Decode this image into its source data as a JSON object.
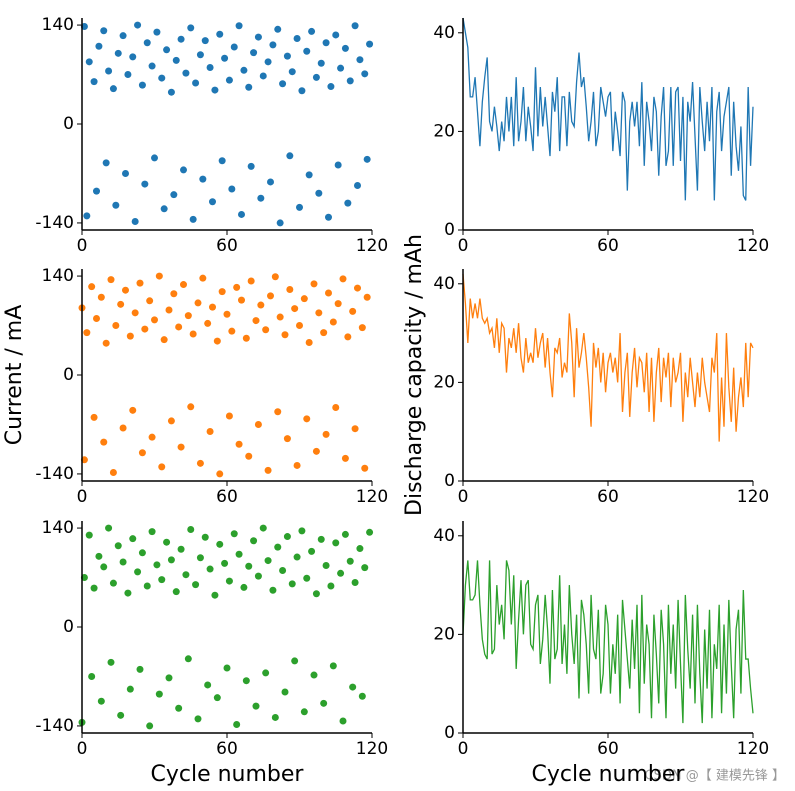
{
  "chart_data": [
    {
      "type": "scatter",
      "color": "#1f77b4",
      "xlim": [
        0,
        120
      ],
      "ylim": [
        -150,
        150
      ],
      "xticks": [
        0,
        60,
        120
      ],
      "yticks": [
        -140,
        0,
        140
      ],
      "x": [
        1,
        3,
        5,
        7,
        9,
        11,
        13,
        15,
        17,
        19,
        21,
        23,
        25,
        27,
        29,
        31,
        33,
        35,
        37,
        39,
        41,
        43,
        45,
        47,
        49,
        51,
        53,
        55,
        57,
        59,
        61,
        63,
        65,
        67,
        69,
        71,
        73,
        75,
        77,
        79,
        81,
        83,
        85,
        87,
        89,
        91,
        93,
        95,
        97,
        99,
        101,
        103,
        105,
        107,
        109,
        111,
        113,
        115,
        117,
        119,
        2,
        6,
        10,
        14,
        18,
        22,
        26,
        30,
        34,
        38,
        42,
        46,
        50,
        54,
        58,
        62,
        66,
        70,
        74,
        78,
        82,
        86,
        90,
        94,
        98,
        102,
        106,
        110,
        114,
        118
      ],
      "y": [
        138,
        88,
        60,
        110,
        132,
        75,
        50,
        100,
        125,
        70,
        95,
        140,
        55,
        115,
        82,
        130,
        65,
        105,
        45,
        90,
        120,
        72,
        136,
        58,
        98,
        118,
        80,
        48,
        127,
        93,
        62,
        109,
        139,
        76,
        52,
        101,
        123,
        68,
        88,
        112,
        134,
        57,
        96,
        74,
        121,
        47,
        103,
        131,
        66,
        86,
        115,
        53,
        126,
        79,
        107,
        61,
        139,
        91,
        71,
        113,
        -130,
        -95,
        -55,
        -115,
        -70,
        -138,
        -85,
        -48,
        -120,
        -100,
        -65,
        -135,
        -78,
        -110,
        -52,
        -92,
        -128,
        -60,
        -105,
        -82,
        -140,
        -45,
        -118,
        -72,
        -98,
        -132,
        -58,
        -112,
        -87,
        -50
      ]
    },
    {
      "type": "scatter",
      "color": "#ff7f0e",
      "xlim": [
        0,
        120
      ],
      "ylim": [
        -150,
        150
      ],
      "xticks": [
        0,
        60,
        120
      ],
      "yticks": [
        -140,
        0,
        140
      ],
      "ylabel": "Current / mA",
      "x": [
        0,
        2,
        4,
        6,
        8,
        10,
        12,
        14,
        16,
        18,
        20,
        22,
        24,
        26,
        28,
        30,
        32,
        34,
        36,
        38,
        40,
        42,
        44,
        46,
        48,
        50,
        52,
        54,
        56,
        58,
        60,
        62,
        64,
        66,
        68,
        70,
        72,
        74,
        76,
        78,
        80,
        82,
        84,
        86,
        88,
        90,
        92,
        94,
        96,
        98,
        100,
        102,
        104,
        106,
        108,
        110,
        112,
        114,
        116,
        118,
        1,
        5,
        9,
        13,
        17,
        21,
        25,
        29,
        33,
        37,
        41,
        45,
        49,
        53,
        57,
        61,
        65,
        69,
        73,
        77,
        81,
        85,
        89,
        93,
        97,
        101,
        105,
        109,
        113,
        117
      ],
      "y": [
        95,
        60,
        125,
        80,
        110,
        45,
        135,
        70,
        100,
        120,
        55,
        88,
        130,
        65,
        105,
        78,
        140,
        50,
        92,
        115,
        68,
        128,
        84,
        58,
        102,
        137,
        73,
        96,
        48,
        118,
        86,
        62,
        124,
        106,
        52,
        133,
        77,
        99,
        64,
        112,
        139,
        82,
        57,
        121,
        94,
        70,
        108,
        46,
        129,
        88,
        60,
        116,
        75,
        101,
        136,
        54,
        90,
        123,
        67,
        110,
        -120,
        -60,
        -95,
        -138,
        -75,
        -50,
        -110,
        -88,
        -130,
        -65,
        -102,
        -45,
        -125,
        -80,
        -140,
        -58,
        -98,
        -115,
        -70,
        -135,
        -52,
        -90,
        -128,
        -62,
        -108,
        -84,
        -46,
        -118,
        -76,
        -132
      ]
    },
    {
      "type": "scatter",
      "color": "#2ca02c",
      "xlim": [
        0,
        120
      ],
      "ylim": [
        -150,
        150
      ],
      "xticks": [
        0,
        60,
        120
      ],
      "yticks": [
        -140,
        0,
        140
      ],
      "xlabel": "Cycle number",
      "x": [
        1,
        3,
        5,
        7,
        9,
        11,
        13,
        15,
        17,
        19,
        21,
        23,
        25,
        27,
        29,
        31,
        33,
        35,
        37,
        39,
        41,
        43,
        45,
        47,
        49,
        51,
        53,
        55,
        57,
        59,
        61,
        63,
        65,
        67,
        69,
        71,
        73,
        75,
        77,
        79,
        81,
        83,
        85,
        87,
        89,
        91,
        93,
        95,
        97,
        99,
        101,
        103,
        105,
        107,
        109,
        111,
        113,
        115,
        117,
        119,
        0,
        4,
        8,
        12,
        16,
        20,
        24,
        28,
        32,
        36,
        40,
        44,
        48,
        52,
        56,
        60,
        64,
        68,
        72,
        76,
        80,
        84,
        88,
        92,
        96,
        100,
        104,
        108,
        112,
        116
      ],
      "y": [
        70,
        130,
        55,
        100,
        85,
        140,
        62,
        115,
        92,
        48,
        125,
        78,
        105,
        58,
        135,
        88,
        67,
        120,
        95,
        50,
        110,
        74,
        138,
        60,
        98,
        127,
        82,
        45,
        117,
        90,
        65,
        132,
        103,
        56,
        86,
        122,
        72,
        140,
        94,
        52,
        113,
        80,
        128,
        61,
        99,
        136,
        69,
        107,
        47,
        124,
        87,
        58,
        119,
        76,
        131,
        93,
        63,
        111,
        84,
        134,
        -135,
        -70,
        -105,
        -50,
        -125,
        -88,
        -60,
        -140,
        -95,
        -72,
        -115,
        -45,
        -130,
        -82,
        -100,
        -58,
        -138,
        -76,
        -112,
        -65,
        -128,
        -92,
        -48,
        -120,
        -68,
        -108,
        -55,
        -133,
        -85,
        -98
      ]
    },
    {
      "type": "line",
      "color": "#1f77b4",
      "xlim": [
        0,
        120
      ],
      "ylim": [
        0,
        43
      ],
      "xticks": [
        0,
        60,
        120
      ],
      "yticks": [
        0,
        20,
        40
      ],
      "x": [
        0,
        1,
        2,
        3,
        4,
        5,
        6,
        7,
        8,
        9,
        10,
        11,
        12,
        13,
        14,
        15,
        16,
        17,
        18,
        19,
        20,
        21,
        22,
        23,
        24,
        25,
        26,
        27,
        28,
        29,
        30,
        31,
        32,
        33,
        34,
        35,
        36,
        37,
        38,
        39,
        40,
        41,
        42,
        43,
        44,
        45,
        46,
        47,
        48,
        49,
        50,
        51,
        52,
        53,
        54,
        55,
        56,
        57,
        58,
        59,
        60,
        61,
        62,
        63,
        64,
        65,
        66,
        67,
        68,
        69,
        70,
        71,
        72,
        73,
        74,
        75,
        76,
        77,
        78,
        79,
        80,
        81,
        82,
        83,
        84,
        85,
        86,
        87,
        88,
        89,
        90,
        91,
        92,
        93,
        94,
        95,
        96,
        97,
        98,
        99,
        100,
        101,
        102,
        103,
        104,
        105,
        106,
        107,
        108,
        109,
        110,
        111,
        112,
        113,
        114,
        115,
        116,
        117,
        118,
        119,
        120
      ],
      "values": [
        43,
        40,
        37,
        27,
        27,
        31,
        24,
        17,
        26,
        31,
        35,
        22,
        20,
        25,
        21,
        16,
        22,
        18,
        27,
        20,
        27,
        17,
        31,
        18,
        22,
        29,
        18,
        25,
        21,
        16,
        33,
        19,
        29,
        21,
        27,
        21,
        15,
        28,
        24,
        31,
        16,
        27,
        27,
        17,
        28,
        22,
        21,
        30,
        36,
        29,
        31,
        25,
        18,
        22,
        28,
        17,
        20,
        29,
        26,
        23,
        27,
        28,
        16,
        24,
        20,
        15,
        28,
        26,
        8,
        22,
        26,
        21,
        26,
        17,
        30,
        13,
        26,
        22,
        16,
        27,
        24,
        11,
        23,
        29,
        13,
        16,
        29,
        13,
        28,
        29,
        14,
        27,
        6,
        26,
        22,
        30,
        19,
        8,
        29,
        22,
        16,
        26,
        18,
        29,
        6,
        24,
        28,
        16,
        23,
        26,
        29,
        11,
        26,
        17,
        12,
        21,
        7,
        6,
        29,
        13,
        25
      ]
    },
    {
      "type": "line",
      "color": "#ff7f0e",
      "xlim": [
        0,
        120
      ],
      "ylim": [
        0,
        43
      ],
      "xticks": [
        0,
        60,
        120
      ],
      "yticks": [
        0,
        20,
        40
      ],
      "ylabel": "Discharge capacity / mAh",
      "x": [
        0,
        1,
        2,
        3,
        4,
        5,
        6,
        7,
        8,
        9,
        10,
        11,
        12,
        13,
        14,
        15,
        16,
        17,
        18,
        19,
        20,
        21,
        22,
        23,
        24,
        25,
        26,
        27,
        28,
        29,
        30,
        31,
        32,
        33,
        34,
        35,
        36,
        37,
        38,
        39,
        40,
        41,
        42,
        43,
        44,
        45,
        46,
        47,
        48,
        49,
        50,
        51,
        52,
        53,
        54,
        55,
        56,
        57,
        58,
        59,
        60,
        61,
        62,
        63,
        64,
        65,
        66,
        67,
        68,
        69,
        70,
        71,
        72,
        73,
        74,
        75,
        76,
        77,
        78,
        79,
        80,
        81,
        82,
        83,
        84,
        85,
        86,
        87,
        88,
        89,
        90,
        91,
        92,
        93,
        94,
        95,
        96,
        97,
        98,
        99,
        100,
        101,
        102,
        103,
        104,
        105,
        106,
        107,
        108,
        109,
        110,
        111,
        112,
        113,
        114,
        115,
        116,
        117,
        118,
        119,
        120
      ],
      "values": [
        42,
        36,
        28,
        37,
        33,
        36,
        33,
        37,
        33,
        32,
        33,
        30,
        31,
        27,
        33,
        26,
        32,
        31,
        22,
        29,
        27,
        31,
        26,
        32,
        25,
        22,
        29,
        24,
        26,
        24,
        31,
        25,
        28,
        30,
        23,
        29,
        22,
        17,
        27,
        26,
        29,
        21,
        24,
        22,
        34,
        28,
        17,
        31,
        23,
        26,
        30,
        25,
        19,
        11,
        28,
        23,
        27,
        20,
        26,
        18,
        24,
        26,
        22,
        25,
        20,
        30,
        14,
        22,
        26,
        13,
        22,
        27,
        19,
        25,
        24,
        18,
        26,
        14,
        25,
        12,
        22,
        27,
        16,
        25,
        21,
        26,
        15,
        25,
        20,
        22,
        26,
        12,
        22,
        17,
        25,
        20,
        15,
        22,
        17,
        25,
        20,
        17,
        14,
        25,
        22,
        30,
        8,
        21,
        11,
        30,
        19,
        12,
        23,
        10,
        17,
        21,
        15,
        28,
        17,
        28,
        27
      ]
    },
    {
      "type": "line",
      "color": "#2ca02c",
      "xlim": [
        0,
        120
      ],
      "ylim": [
        0,
        43
      ],
      "xticks": [
        0,
        60,
        120
      ],
      "yticks": [
        0,
        20,
        40
      ],
      "xlabel": "Cycle number",
      "x": [
        0,
        1,
        2,
        3,
        4,
        5,
        6,
        7,
        8,
        9,
        10,
        11,
        12,
        13,
        14,
        15,
        16,
        17,
        18,
        19,
        20,
        21,
        22,
        23,
        24,
        25,
        26,
        27,
        28,
        29,
        30,
        31,
        32,
        33,
        34,
        35,
        36,
        37,
        38,
        39,
        40,
        41,
        42,
        43,
        44,
        45,
        46,
        47,
        48,
        49,
        50,
        51,
        52,
        53,
        54,
        55,
        56,
        57,
        58,
        59,
        60,
        61,
        62,
        63,
        64,
        65,
        66,
        67,
        68,
        69,
        70,
        71,
        72,
        73,
        74,
        75,
        76,
        77,
        78,
        79,
        80,
        81,
        82,
        83,
        84,
        85,
        86,
        87,
        88,
        89,
        90,
        91,
        92,
        93,
        94,
        95,
        96,
        97,
        98,
        99,
        100,
        101,
        102,
        103,
        104,
        105,
        106,
        107,
        108,
        109,
        110,
        111,
        112,
        113,
        114,
        115,
        116,
        117,
        118,
        119,
        120
      ],
      "values": [
        20,
        30,
        35,
        27,
        27,
        28,
        35,
        26,
        19,
        16,
        15,
        35,
        16,
        17,
        30,
        22,
        26,
        19,
        35,
        33,
        22,
        32,
        13,
        23,
        31,
        20,
        30,
        31,
        18,
        17,
        26,
        28,
        14,
        19,
        28,
        21,
        10,
        29,
        15,
        17,
        32,
        14,
        22,
        12,
        30,
        20,
        14,
        24,
        7,
        27,
        24,
        18,
        8,
        28,
        17,
        15,
        25,
        8,
        12,
        26,
        22,
        8,
        18,
        12,
        24,
        6,
        27,
        21,
        15,
        9,
        23,
        13,
        26,
        4,
        28,
        10,
        22,
        18,
        3,
        24,
        16,
        6,
        25,
        18,
        3,
        26,
        12,
        22,
        9,
        27,
        14,
        2,
        28,
        17,
        9,
        24,
        6,
        26,
        12,
        2,
        21,
        9,
        25,
        3,
        18,
        13,
        26,
        4,
        22,
        8,
        27,
        14,
        3,
        21,
        25,
        8,
        29,
        15,
        15,
        9,
        4
      ]
    }
  ],
  "watermark": "CSDN @【 建模先锋 】"
}
